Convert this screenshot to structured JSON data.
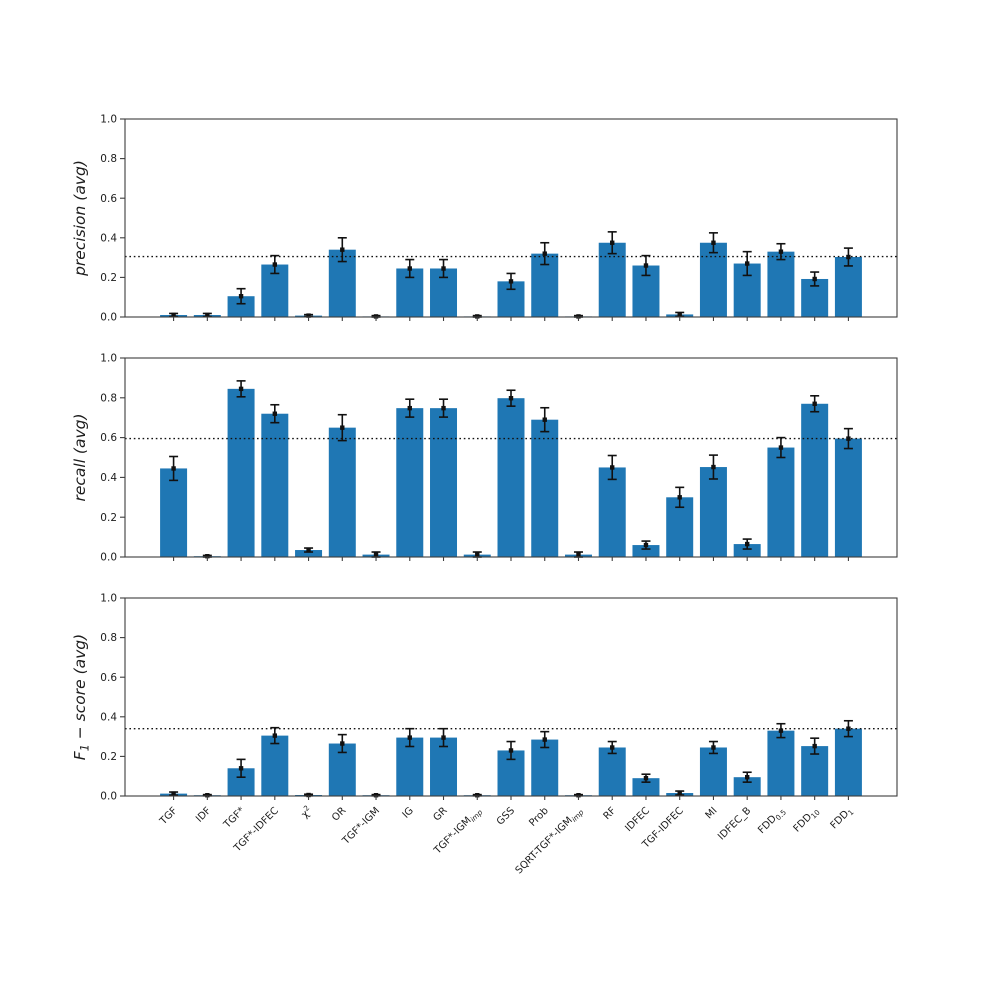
{
  "figure": {
    "background_color": "#ffffff",
    "bar_color": "#1f77b4",
    "error_bar_color": "#111111",
    "axis_color": "#3d3d3d",
    "text_color": "#1c1c1c",
    "ref_line_style": "dotted"
  },
  "chart_data": [
    {
      "type": "bar",
      "title": "",
      "xlabel": "",
      "ylabel": "precision (avg)",
      "ylim": [
        0.0,
        1.0
      ],
      "yticks": [
        0.0,
        0.2,
        0.4,
        0.6,
        0.8,
        1.0
      ],
      "grid": false,
      "legend": null,
      "ref_line": 0.305,
      "categories": [
        "TGF",
        "IDF",
        "TGF*",
        "TGF*-IDFEC",
        "χ^{2}",
        "OR",
        "TGF*-IGM",
        "IG",
        "GR",
        "TGF*-IGM_{imp}",
        "GSS",
        "Prob",
        "SQRT-TGF*-IGM_{imp}",
        "RF",
        "IDFEC",
        "TGF-IDFEC",
        "MI",
        "IDFEC_B",
        "FDD_{0.5}",
        "FDD_{10}",
        "FDD_{1}"
      ],
      "values": [
        0.01,
        0.01,
        0.105,
        0.265,
        0.007,
        0.34,
        0.003,
        0.245,
        0.245,
        0.003,
        0.18,
        0.32,
        0.003,
        0.375,
        0.26,
        0.013,
        0.375,
        0.27,
        0.33,
        0.192,
        0.303
      ],
      "errors": [
        0.008,
        0.008,
        0.038,
        0.045,
        0.005,
        0.06,
        0.004,
        0.045,
        0.045,
        0.004,
        0.04,
        0.055,
        0.004,
        0.055,
        0.05,
        0.01,
        0.05,
        0.06,
        0.04,
        0.035,
        0.045
      ]
    },
    {
      "type": "bar",
      "title": "",
      "xlabel": "",
      "ylabel": "recall (avg)",
      "ylim": [
        0.0,
        1.0
      ],
      "yticks": [
        0.0,
        0.2,
        0.4,
        0.6,
        0.8,
        1.0
      ],
      "grid": false,
      "legend": null,
      "ref_line": 0.595,
      "categories": [
        "TGF",
        "IDF",
        "TGF*",
        "TGF*-IDFEC",
        "χ^{2}",
        "OR",
        "TGF*-IGM",
        "IG",
        "GR",
        "TGF*-IGM_{imp}",
        "GSS",
        "Prob",
        "SQRT-TGF*-IGM_{imp}",
        "RF",
        "IDFEC",
        "TGF-IDFEC",
        "MI",
        "IDFEC_B",
        "FDD_{0.5}",
        "FDD_{10}",
        "FDD_{1}"
      ],
      "values": [
        0.445,
        0.004,
        0.845,
        0.72,
        0.035,
        0.65,
        0.012,
        0.748,
        0.748,
        0.012,
        0.798,
        0.69,
        0.012,
        0.45,
        0.06,
        0.3,
        0.452,
        0.065,
        0.55,
        0.77,
        0.595
      ],
      "errors": [
        0.06,
        0.004,
        0.04,
        0.045,
        0.01,
        0.065,
        0.013,
        0.045,
        0.045,
        0.013,
        0.04,
        0.06,
        0.013,
        0.06,
        0.02,
        0.05,
        0.06,
        0.025,
        0.05,
        0.04,
        0.05
      ]
    },
    {
      "type": "bar",
      "title": "",
      "xlabel": "",
      "ylabel": "F_{1} − score (avg)",
      "ylim": [
        0.0,
        1.0
      ],
      "yticks": [
        0.0,
        0.2,
        0.4,
        0.6,
        0.8,
        1.0
      ],
      "grid": false,
      "legend": null,
      "ref_line": 0.34,
      "categories": [
        "TGF",
        "IDF",
        "TGF*",
        "TGF*-IDFEC",
        "χ^{2}",
        "OR",
        "TGF*-IGM",
        "IG",
        "GR",
        "TGF*-IGM_{imp}",
        "GSS",
        "Prob",
        "SQRT-TGF*-IGM_{imp}",
        "RF",
        "IDFEC",
        "TGF-IDFEC",
        "MI",
        "IDFEC_B",
        "FDD_{0.5}",
        "FDD_{10}",
        "FDD_{1}"
      ],
      "values": [
        0.012,
        0.004,
        0.14,
        0.305,
        0.005,
        0.265,
        0.004,
        0.295,
        0.295,
        0.004,
        0.23,
        0.285,
        0.004,
        0.245,
        0.09,
        0.015,
        0.245,
        0.095,
        0.33,
        0.252,
        0.34
      ],
      "errors": [
        0.008,
        0.003,
        0.045,
        0.04,
        0.004,
        0.045,
        0.003,
        0.045,
        0.045,
        0.003,
        0.045,
        0.04,
        0.003,
        0.03,
        0.02,
        0.01,
        0.03,
        0.025,
        0.035,
        0.04,
        0.04
      ]
    }
  ]
}
